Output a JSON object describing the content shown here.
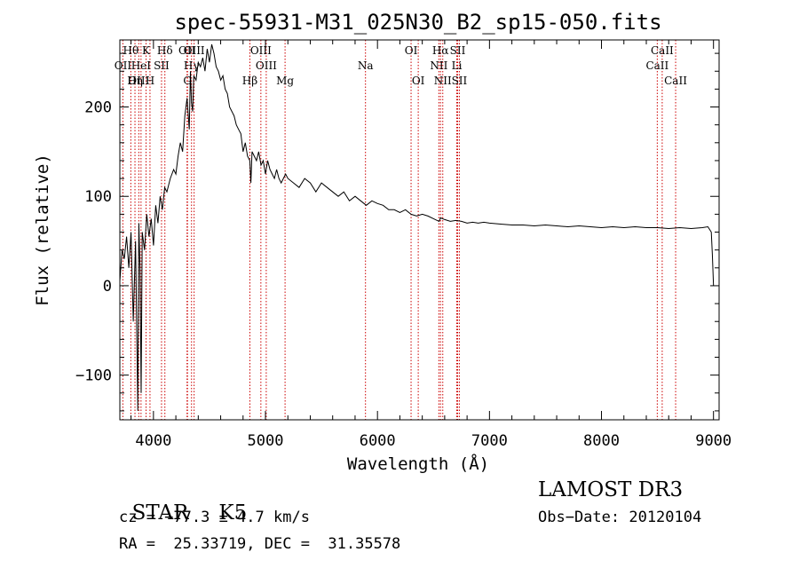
{
  "chart_data": {
    "type": "line",
    "title": "spec-55931-M31_025N30_B2_sp15-050.fits",
    "xlabel": "Wavelength (Å)",
    "ylabel": "Flux (relative)",
    "xlim": [
      3700,
      9050
    ],
    "ylim": [
      -150,
      275
    ],
    "xticks": [
      {
        "value": 4000,
        "label": "4000"
      },
      {
        "value": 5000,
        "label": "5000"
      },
      {
        "value": 6000,
        "label": "6000"
      },
      {
        "value": 7000,
        "label": "7000"
      },
      {
        "value": 8000,
        "label": "8000"
      },
      {
        "value": 9000,
        "label": "9000"
      }
    ],
    "yticks": [
      {
        "value": -100,
        "label": "−100"
      },
      {
        "value": 0,
        "label": "0"
      },
      {
        "value": 100,
        "label": "100"
      },
      {
        "value": 200,
        "label": "200"
      }
    ],
    "series": [
      {
        "name": "spectrum",
        "x": [
          3700,
          3720,
          3740,
          3760,
          3780,
          3800,
          3820,
          3840,
          3860,
          3870,
          3880,
          3890,
          3900,
          3920,
          3940,
          3960,
          3980,
          4000,
          4020,
          4040,
          4060,
          4080,
          4100,
          4120,
          4150,
          4180,
          4200,
          4220,
          4240,
          4260,
          4280,
          4300,
          4320,
          4330,
          4340,
          4350,
          4360,
          4380,
          4400,
          4420,
          4440,
          4460,
          4480,
          4500,
          4520,
          4540,
          4560,
          4580,
          4600,
          4620,
          4640,
          4660,
          4680,
          4700,
          4720,
          4740,
          4760,
          4780,
          4800,
          4820,
          4840,
          4860,
          4870,
          4880,
          4900,
          4920,
          4940,
          4960,
          4980,
          5000,
          5020,
          5040,
          5060,
          5080,
          5100,
          5120,
          5140,
          5160,
          5180,
          5200,
          5250,
          5300,
          5350,
          5400,
          5450,
          5500,
          5550,
          5600,
          5650,
          5700,
          5750,
          5800,
          5850,
          5900,
          5950,
          6000,
          6050,
          6100,
          6150,
          6200,
          6250,
          6300,
          6350,
          6400,
          6450,
          6500,
          6550,
          6563,
          6600,
          6650,
          6700,
          6750,
          6800,
          6850,
          6900,
          6950,
          7000,
          7100,
          7200,
          7300,
          7400,
          7500,
          7600,
          7700,
          7800,
          7900,
          8000,
          8100,
          8200,
          8300,
          8400,
          8500,
          8600,
          8700,
          8800,
          8900,
          8950,
          8980,
          8990,
          9000
        ],
        "values": [
          5,
          40,
          30,
          55,
          20,
          60,
          -40,
          50,
          -140,
          70,
          20,
          -120,
          60,
          40,
          80,
          55,
          75,
          45,
          90,
          70,
          100,
          85,
          110,
          105,
          120,
          130,
          125,
          145,
          160,
          150,
          190,
          210,
          175,
          240,
          205,
          195,
          235,
          230,
          250,
          245,
          255,
          240,
          265,
          250,
          270,
          260,
          245,
          240,
          230,
          235,
          220,
          215,
          200,
          195,
          190,
          180,
          175,
          170,
          150,
          160,
          145,
          140,
          115,
          150,
          145,
          140,
          150,
          135,
          140,
          125,
          140,
          130,
          125,
          120,
          130,
          120,
          115,
          120,
          125,
          120,
          115,
          110,
          120,
          115,
          105,
          115,
          110,
          105,
          100,
          105,
          95,
          100,
          95,
          90,
          95,
          92,
          90,
          85,
          85,
          82,
          85,
          80,
          78,
          80,
          78,
          75,
          72,
          76,
          74,
          72,
          73,
          72,
          70,
          71,
          70,
          71,
          70,
          69,
          68,
          68,
          67,
          68,
          67,
          66,
          67,
          66,
          65,
          66,
          65,
          66,
          65,
          65,
          64,
          65,
          64,
          65,
          66,
          60,
          35,
          0
        ]
      }
    ],
    "lines": [
      {
        "name": "Hθ",
        "wave": 3798,
        "row": 0
      },
      {
        "name": "OII",
        "wave": 3727,
        "row": 1
      },
      {
        "name": "OIII",
        "wave": 3869,
        "row": 2
      },
      {
        "name": "HeI",
        "wave": 3889,
        "row": 1
      },
      {
        "name": "K",
        "wave": 3934,
        "row": 0
      },
      {
        "name": "Hη",
        "wave": 3835,
        "row": 2
      },
      {
        "name": "H",
        "wave": 3969,
        "row": 2
      },
      {
        "name": "SII",
        "wave": 4072,
        "row": 1
      },
      {
        "name": "Hδ",
        "wave": 4102,
        "row": 0
      },
      {
        "name": "OII",
        "wave": 4300,
        "row": 0
      },
      {
        "name": "Hγ",
        "wave": 4340,
        "row": 1
      },
      {
        "name": "G",
        "wave": 4304,
        "row": 2
      },
      {
        "name": "OIII",
        "wave": 4363,
        "row": 0
      },
      {
        "name": "Hβ",
        "wave": 4861,
        "row": 2
      },
      {
        "name": "OIII",
        "wave": 4959,
        "row": 0
      },
      {
        "name": "OIII",
        "wave": 5007,
        "row": 1
      },
      {
        "name": "Mg",
        "wave": 5175,
        "row": 2
      },
      {
        "name": "Na",
        "wave": 5893,
        "row": 1
      },
      {
        "name": "OI",
        "wave": 6300,
        "row": 0
      },
      {
        "name": "OI",
        "wave": 6364,
        "row": 2
      },
      {
        "name": "Hα",
        "wave": 6563,
        "row": 0
      },
      {
        "name": "NII",
        "wave": 6548,
        "row": 1
      },
      {
        "name": "NII",
        "wave": 6583,
        "row": 2
      },
      {
        "name": "SII",
        "wave": 6716,
        "row": 0
      },
      {
        "name": "Li",
        "wave": 6708,
        "row": 1
      },
      {
        "name": "SII",
        "wave": 6731,
        "row": 2
      },
      {
        "name": "CaII",
        "wave": 8542,
        "row": 0
      },
      {
        "name": "CaII",
        "wave": 8498,
        "row": 1
      },
      {
        "name": "CaII",
        "wave": 8662,
        "row": 2
      }
    ]
  },
  "info": {
    "class": "STAR",
    "subclass": "K5",
    "survey": "LAMOST DR3",
    "redshift": "cz = −77.3 ± 4.7 km/s",
    "obs_date": "Obs−Date: 20120104",
    "coords": "RA =  25.33719, DEC =  31.35578"
  }
}
